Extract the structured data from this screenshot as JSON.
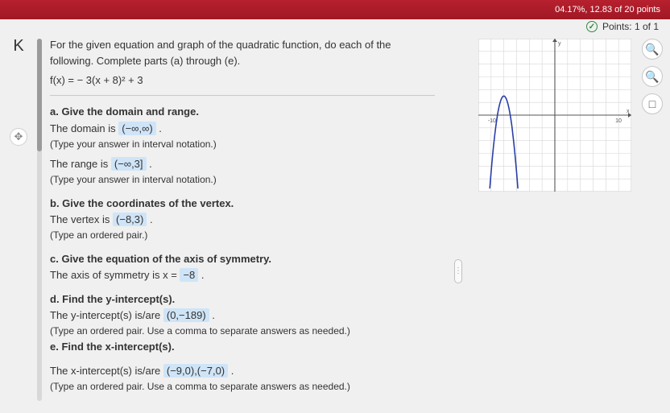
{
  "header": {
    "score_fragment": "04.17%, 12.83 of 20 points",
    "points_label": "Points: 1 of 1"
  },
  "question": {
    "instructions": "For the given equation and graph of the quadratic function, do each of the following. Complete parts (a) through (e).",
    "equation": "f(x) = − 3(x + 8)² + 3",
    "parts": {
      "a": {
        "prompt": "a. Give the domain and range.",
        "l1a": "The domain is ",
        "l1b": "(−∞,∞)",
        "l1c": " .",
        "h1": "(Type your answer in interval notation.)",
        "l2a": "The range is ",
        "l2b": "(−∞,3]",
        "l2c": " .",
        "h2": "(Type your answer in interval notation.)"
      },
      "b": {
        "prompt": "b. Give the coordinates of the vertex.",
        "l1a": "The vertex is ",
        "l1b": "(−8,3)",
        "l1c": " .",
        "h1": "(Type an ordered pair.)"
      },
      "c": {
        "prompt": "c. Give the equation of the axis of symmetry.",
        "l1a": "The axis of symmetry is x = ",
        "l1b": "−8",
        "l1c": " ."
      },
      "d": {
        "prompt": "d. Find the y-intercept(s).",
        "l1a": "The y-intercept(s) is/are ",
        "l1b": "(0,−189)",
        "l1c": " .",
        "h1": "(Type an ordered pair. Use a comma to separate answers as needed.)"
      },
      "e": {
        "prompt": "e. Find the x-intercept(s).",
        "l1a": "The x-intercept(s) is/are ",
        "l1b": "(−9,0),(−7,0)",
        "l1c": " .",
        "h1": "(Type an ordered pair. Use a comma to separate answers as needed.)"
      }
    }
  },
  "graph": {
    "xlim": [
      -12,
      12
    ],
    "ylim": [
      -12,
      12
    ],
    "tick_step": 2,
    "grid_color": "#d6d6d6",
    "axis_color": "#555555",
    "curve_color": "#2b3ea8",
    "curve_width": 1.6,
    "background_color": "#ffffff",
    "title": "y",
    "vertex": [
      -8,
      3
    ],
    "a": -3
  },
  "tools": {
    "zoom_in": "＋",
    "zoom_out": "−",
    "reset": "⟳"
  }
}
